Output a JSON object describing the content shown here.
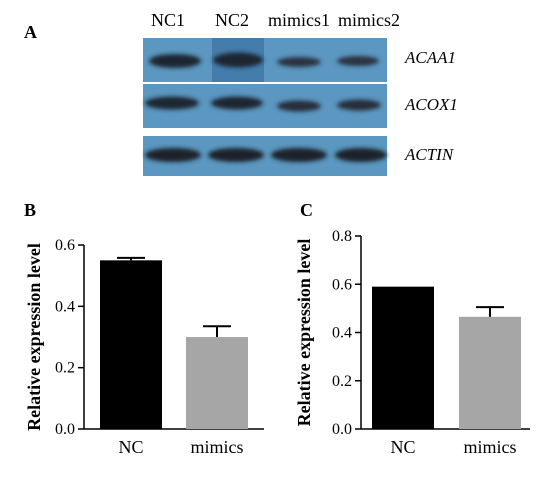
{
  "panels": {
    "a": "A",
    "b": "B",
    "c": "C"
  },
  "blot": {
    "lanes": [
      "NC1",
      "NC2",
      "mimics1",
      "mimics2"
    ],
    "genes": [
      "ACAA1",
      "ACOX1",
      "ACTIN"
    ],
    "colors": {
      "background": "#5b97c0",
      "band": "#1f2530"
    }
  },
  "chart_data": [
    {
      "type": "bar",
      "categories": [
        "NC",
        "mimics"
      ],
      "values": [
        0.55,
        0.3
      ],
      "errors": [
        0.008,
        0.035
      ],
      "colors": [
        "#000000",
        "#a6a6a6"
      ],
      "ylabel": "Relative expression level",
      "ylim": [
        0,
        0.6
      ],
      "yticks": [
        "0.0",
        "0.2",
        "0.4",
        "0.6"
      ],
      "grid": false
    },
    {
      "type": "bar",
      "categories": [
        "NC",
        "mimics"
      ],
      "values": [
        0.59,
        0.465
      ],
      "errors": [
        0,
        0.04
      ],
      "colors": [
        "#000000",
        "#a6a6a6"
      ],
      "ylabel": "Relative expression level",
      "ylim": [
        0,
        0.8
      ],
      "yticks": [
        "0.0",
        "0.2",
        "0.4",
        "0.6",
        "0.8"
      ],
      "grid": false
    }
  ]
}
